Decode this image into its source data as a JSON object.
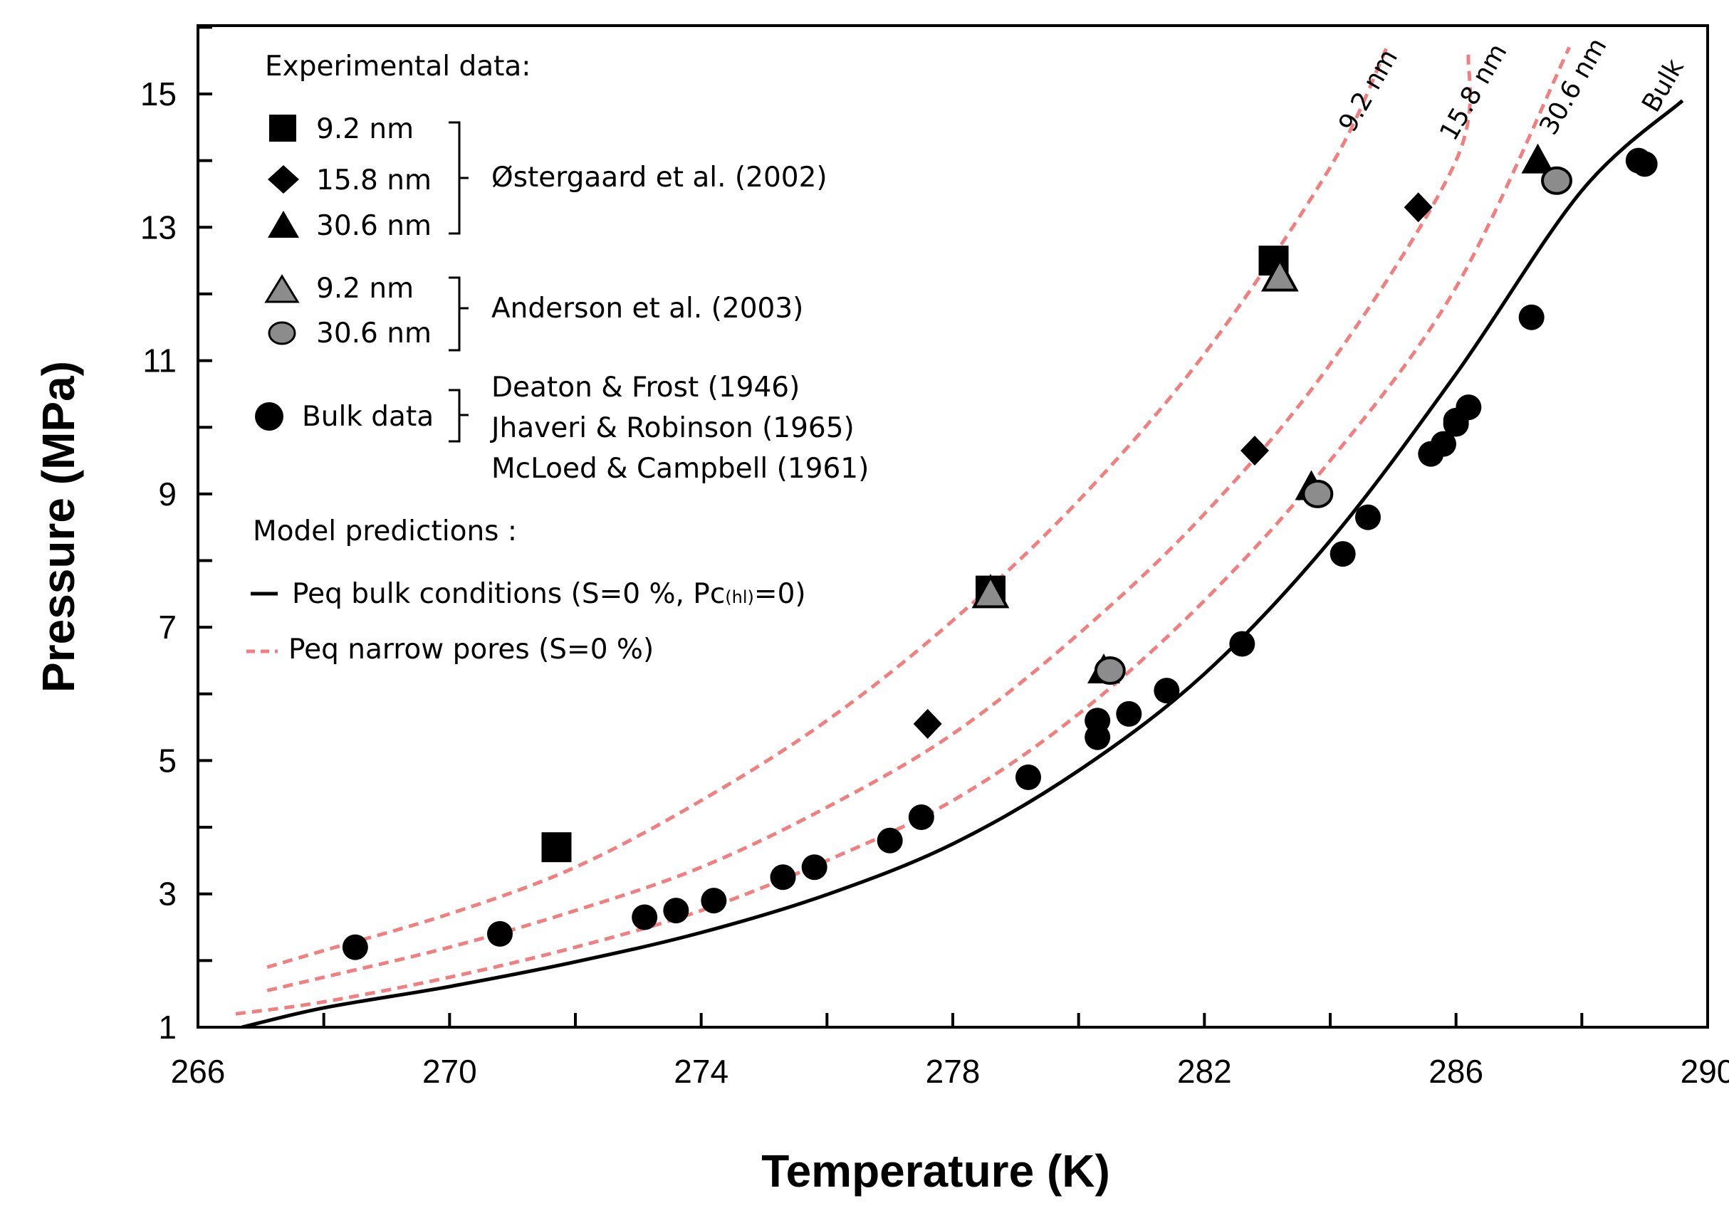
{
  "chart_data": {
    "type": "scatter",
    "xlabel": "Temperature (K)",
    "ylabel": "Pressure (MPa)",
    "xlim": [
      266,
      290
    ],
    "ylim": [
      1,
      16
    ],
    "xticks": [
      266,
      270,
      274,
      278,
      282,
      286,
      290
    ],
    "yticks": [
      1,
      3,
      5,
      7,
      9,
      11,
      13,
      15
    ],
    "grid": false,
    "legend_position": "top-left",
    "legend": {
      "experimental_title": "Experimental data:",
      "model_title": "Model predictions :",
      "ostergaard_ref": "Østergaard et al. (2002)",
      "anderson_ref": "Anderson et al. (2003)",
      "bulk_refs": [
        "Deaton & Frost (1946)",
        "Jhaveri & Robinson (1965)",
        "McLoed & Campbell (1961)"
      ],
      "entries": {
        "ost_92": "9.2 nm",
        "ost_158": "15.8 nm",
        "ost_306": "30.6 nm",
        "and_92": "9.2 nm",
        "and_306": "30.6 nm",
        "bulk": "Bulk data"
      },
      "bulk_line_label_main": "Peq bulk  conditions (S=0 %,  Pc",
      "bulk_line_label_sub": "(hl)",
      "bulk_line_label_end": "=0)",
      "narrow_line_label": "Peq narrow pores (S=0 %)"
    },
    "colors": {
      "bulk_line": "#000000",
      "narrow_line": "#f08080",
      "black_marker": "#000000",
      "grey_marker": "#8c8c8c"
    },
    "curve_labels": [
      "9.2 nm",
      "15.8 nm",
      "30.6 nm",
      "Bulk"
    ],
    "series": [
      {
        "name": "9.2 nm",
        "group": "Østergaard et al. (2002)",
        "marker": "square",
        "color": "black",
        "x": [
          271.7,
          278.6,
          283.1
        ],
        "y": [
          3.7,
          7.55,
          12.5
        ]
      },
      {
        "name": "15.8 nm",
        "group": "Østergaard et al. (2002)",
        "marker": "diamond",
        "color": "black",
        "x": [
          277.6,
          282.8,
          285.4
        ],
        "y": [
          5.55,
          9.65,
          13.3
        ]
      },
      {
        "name": "30.6 nm",
        "group": "Østergaard et al. (2002)",
        "marker": "triangle",
        "color": "black",
        "x": [
          280.4,
          283.7,
          287.3
        ],
        "y": [
          6.35,
          9.1,
          14.0
        ]
      },
      {
        "name": "9.2 nm",
        "group": "Anderson et al. (2003)",
        "marker": "triangle",
        "color": "grey",
        "x": [
          278.6,
          283.2
        ],
        "y": [
          7.5,
          12.25
        ]
      },
      {
        "name": "30.6 nm",
        "group": "Anderson et al. (2003)",
        "marker": "circle",
        "color": "grey",
        "x": [
          280.5,
          283.8,
          287.6
        ],
        "y": [
          6.35,
          9.0,
          13.7
        ]
      },
      {
        "name": "Bulk data",
        "marker": "circle",
        "color": "black",
        "x": [
          268.5,
          270.8,
          273.1,
          273.6,
          274.2,
          275.3,
          275.8,
          277.0,
          277.5,
          279.2,
          280.3,
          280.3,
          280.8,
          281.4,
          282.6,
          284.2,
          284.6,
          285.6,
          285.8,
          286.0,
          286.0,
          286.2,
          287.2,
          288.9,
          289.0
        ],
        "y": [
          2.2,
          2.4,
          2.65,
          2.75,
          2.9,
          3.25,
          3.4,
          3.8,
          4.15,
          4.75,
          5.35,
          5.6,
          5.7,
          6.05,
          6.75,
          8.1,
          8.65,
          9.6,
          9.75,
          10.05,
          10.1,
          10.3,
          11.65,
          14.0,
          13.95
        ]
      },
      {
        "name": "Peq bulk  conditions (S=0 %,  Pc(hl)=0)",
        "type": "line",
        "style": "solid",
        "color": "black",
        "x": [
          266.7,
          268,
          270,
          272,
          274,
          276,
          278,
          280,
          282,
          284,
          286,
          288,
          289.6
        ],
        "y": [
          1.0,
          1.29,
          1.61,
          1.98,
          2.42,
          2.99,
          3.75,
          4.85,
          6.3,
          8.3,
          10.8,
          13.55,
          14.9
        ]
      },
      {
        "name": "9.2 nm",
        "type": "line",
        "style": "dashed",
        "color": "pink",
        "x": [
          267.1,
          268,
          270,
          272,
          274,
          276,
          278,
          280,
          282,
          284,
          284.9
        ],
        "y": [
          1.9,
          2.15,
          2.7,
          3.4,
          4.4,
          5.6,
          7.1,
          8.9,
          11.1,
          13.9,
          15.7
        ]
      },
      {
        "name": "15.8 nm",
        "type": "line",
        "style": "dashed",
        "color": "pink",
        "x": [
          267.1,
          268,
          270,
          272,
          274,
          276,
          278,
          280,
          282,
          284,
          286,
          286.2
        ],
        "y": [
          1.55,
          1.75,
          2.2,
          2.75,
          3.4,
          4.3,
          5.4,
          6.9,
          8.7,
          10.95,
          14.0,
          15.6
        ]
      },
      {
        "name": "30.6 nm",
        "type": "line",
        "style": "dashed",
        "color": "pink",
        "x": [
          266.6,
          268,
          270,
          272,
          274,
          276,
          278,
          280,
          282,
          284,
          286,
          287.8
        ],
        "y": [
          1.2,
          1.38,
          1.75,
          2.2,
          2.75,
          3.5,
          4.4,
          5.7,
          7.4,
          9.5,
          12.1,
          15.7
        ]
      }
    ]
  }
}
